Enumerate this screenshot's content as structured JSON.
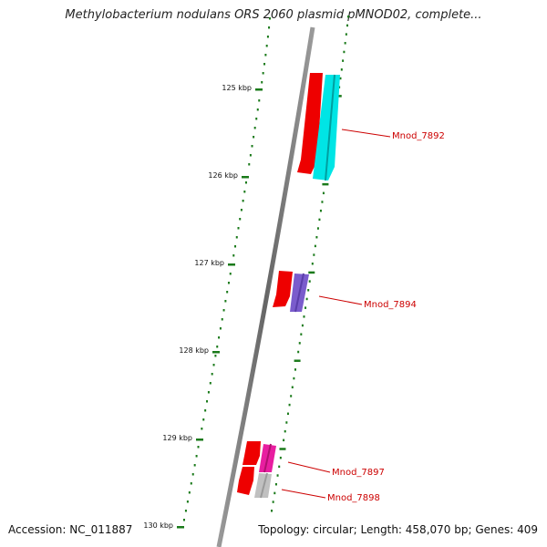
{
  "title": "Methylobacterium nodulans ORS 2060 plasmid pMNOD02, complete...",
  "footer": {
    "accession": "Accession: NC_011887",
    "summary": "Topology: circular; Length: 458,070 bp; Genes: 409"
  },
  "ruler": {
    "labels": [
      "125 kbp",
      "126 kbp",
      "127 kbp",
      "128 kbp",
      "129 kbp",
      "130 kbp"
    ]
  },
  "genes": [
    {
      "label": "Mnod_7892",
      "color": "#00e5e5",
      "strand": "reverse"
    },
    {
      "label": "Mnod_7894",
      "color": "#7a5ccc",
      "strand": "reverse"
    },
    {
      "label": "Mnod_7897",
      "color": "#e81ea0",
      "strand": "reverse"
    },
    {
      "label": "Mnod_7898",
      "color": "#c0c0c0",
      "strand": "reverse"
    }
  ],
  "colors": {
    "cds_feature": "#ee0000",
    "tick": "#1a7a1a",
    "backbone": "#777777",
    "gene_label": "#cc0000"
  }
}
